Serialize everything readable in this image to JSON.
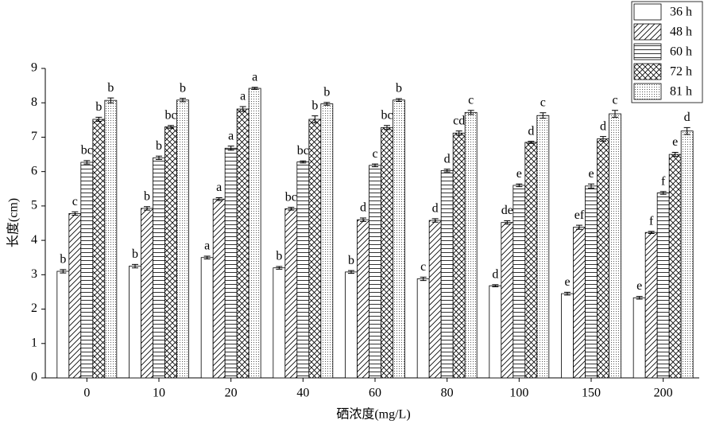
{
  "chart_data": {
    "type": "bar",
    "x_label": "硒浓度(mg/L)",
    "y_label": "长度(cm)",
    "categories": [
      "0",
      "10",
      "20",
      "40",
      "60",
      "80",
      "100",
      "150",
      "200"
    ],
    "ylim": [
      0,
      9
    ],
    "yticks": [
      0,
      1,
      2,
      3,
      4,
      5,
      6,
      7,
      8,
      9
    ],
    "legend": "top-right",
    "series": [
      {
        "name": "36 h",
        "color": "#000000",
        "pattern": "none",
        "values": [
          3.1,
          3.25,
          3.5,
          3.2,
          3.08,
          2.88,
          2.68,
          2.45,
          2.33
        ],
        "errors": [
          0.05,
          0.05,
          0.04,
          0.04,
          0.04,
          0.05,
          0.03,
          0.04,
          0.04
        ],
        "letters": [
          "b",
          "b",
          "a",
          "b",
          "b",
          "c",
          "d",
          "e",
          "e"
        ]
      },
      {
        "name": "48 h",
        "color": "#000000",
        "pattern": "diagonal",
        "values": [
          4.78,
          4.93,
          5.2,
          4.92,
          4.6,
          4.58,
          4.52,
          4.38,
          4.23
        ],
        "errors": [
          0.05,
          0.05,
          0.04,
          0.04,
          0.05,
          0.05,
          0.05,
          0.06,
          0.03
        ],
        "letters": [
          "c",
          "b",
          "a",
          "bc",
          "d",
          "d",
          "de",
          "ef",
          "f"
        ]
      },
      {
        "name": "60 h",
        "color": "#000000",
        "pattern": "horizontal",
        "values": [
          6.27,
          6.4,
          6.68,
          6.28,
          6.18,
          6.03,
          5.6,
          5.58,
          5.38
        ],
        "errors": [
          0.05,
          0.05,
          0.06,
          0.03,
          0.04,
          0.04,
          0.04,
          0.06,
          0.04
        ],
        "letters": [
          "bc",
          "b",
          "a",
          "bc",
          "c",
          "d",
          "e",
          "e",
          "f"
        ]
      },
      {
        "name": "72 h",
        "color": "#000000",
        "pattern": "crosshatch",
        "values": [
          7.52,
          7.3,
          7.82,
          7.52,
          7.28,
          7.12,
          6.85,
          6.95,
          6.5
        ],
        "errors": [
          0.06,
          0.04,
          0.07,
          0.1,
          0.06,
          0.06,
          0.03,
          0.07,
          0.06
        ],
        "letters": [
          "b",
          "bc",
          "a",
          "b",
          "bc",
          "cd",
          "d",
          "d",
          "e"
        ]
      },
      {
        "name": "81 h",
        "color": "#000000",
        "pattern": "dots",
        "values": [
          8.07,
          8.08,
          8.42,
          7.97,
          8.08,
          7.72,
          7.63,
          7.68,
          7.18
        ],
        "errors": [
          0.07,
          0.05,
          0.03,
          0.04,
          0.04,
          0.06,
          0.08,
          0.1,
          0.1
        ],
        "letters": [
          "b",
          "b",
          "a",
          "b",
          "b",
          "c",
          "c",
          "c",
          "d"
        ]
      }
    ]
  }
}
